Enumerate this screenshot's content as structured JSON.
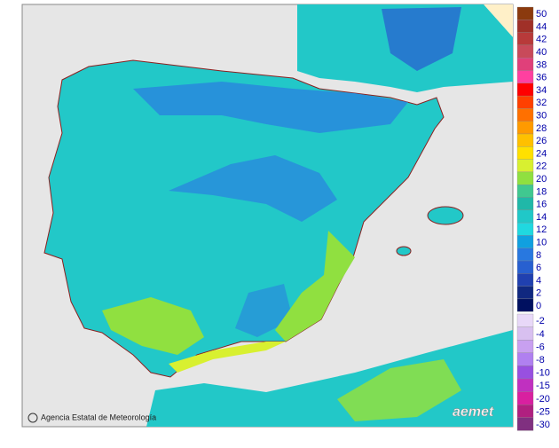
{
  "map": {
    "attribution": "Agencia Estatal de Meteorología",
    "logo": "aemet",
    "legend": [
      {
        "label": "50",
        "color": "#8b3a0e"
      },
      {
        "label": "44",
        "color": "#a03028"
      },
      {
        "label": "42",
        "color": "#b83a3a"
      },
      {
        "label": "40",
        "color": "#c84a5a"
      },
      {
        "label": "38",
        "color": "#e0407a"
      },
      {
        "label": "36",
        "color": "#ff40a0"
      },
      {
        "label": "34",
        "color": "#ff0000"
      },
      {
        "label": "32",
        "color": "#ff4000"
      },
      {
        "label": "30",
        "color": "#ff7000"
      },
      {
        "label": "28",
        "color": "#ff9a00"
      },
      {
        "label": "26",
        "color": "#ffc000"
      },
      {
        "label": "24",
        "color": "#ffe000"
      },
      {
        "label": "22",
        "color": "#d8f030"
      },
      {
        "label": "20",
        "color": "#90e040"
      },
      {
        "label": "18",
        "color": "#40c890"
      },
      {
        "label": "16",
        "color": "#20b8a8"
      },
      {
        "label": "14",
        "color": "#20c8c8"
      },
      {
        "label": "12",
        "color": "#20d8e0"
      },
      {
        "label": "10",
        "color": "#10a0e0"
      },
      {
        "label": "8",
        "color": "#2878e0"
      },
      {
        "label": "6",
        "color": "#2860d0"
      },
      {
        "label": "4",
        "color": "#2040b0"
      },
      {
        "label": "2",
        "color": "#102880"
      },
      {
        "label": "0",
        "color": "#001060"
      },
      {
        "label": "-2",
        "color": "#e8d8f8"
      },
      {
        "label": "-4",
        "color": "#d8c0f0"
      },
      {
        "label": "-6",
        "color": "#c8a0f0"
      },
      {
        "label": "-8",
        "color": "#b080f0"
      },
      {
        "label": "-10",
        "color": "#9850e0"
      },
      {
        "label": "-15",
        "color": "#c030c0"
      },
      {
        "label": "-20",
        "color": "#d820a0"
      },
      {
        "label": "-25",
        "color": "#b02080"
      },
      {
        "label": "-30",
        "color": "#803080"
      }
    ]
  }
}
